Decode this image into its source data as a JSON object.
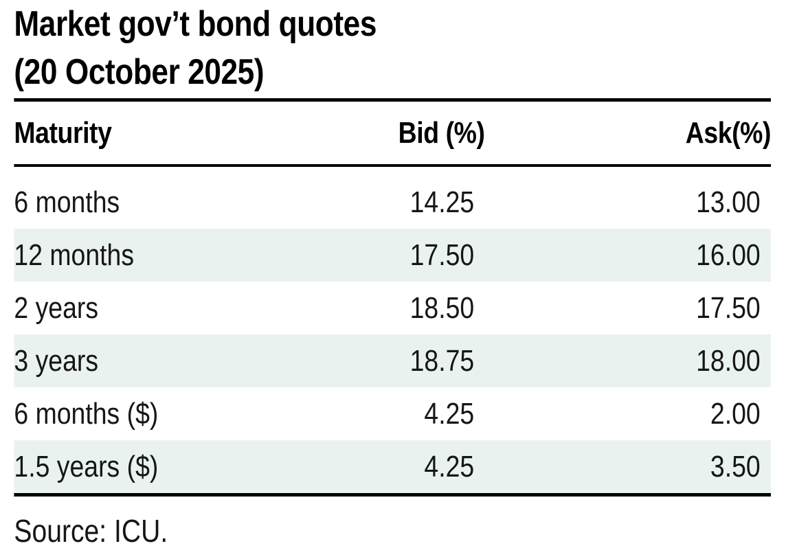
{
  "title": {
    "line1": "Market gov’t bond quotes",
    "line2": "(20 October 2025)"
  },
  "table": {
    "columns": [
      "Maturity",
      "Bid (%)",
      "Ask(%)"
    ],
    "rows": [
      {
        "maturity": "6 months",
        "bid": "14.25",
        "ask": "13.00"
      },
      {
        "maturity": "12 months",
        "bid": "17.50",
        "ask": "16.00"
      },
      {
        "maturity": "2 years",
        "bid": "18.50",
        "ask": "17.50"
      },
      {
        "maturity": "3 years",
        "bid": "18.75",
        "ask": "18.00"
      },
      {
        "maturity": "6 months ($)",
        "bid": "4.25",
        "ask": "2.00"
      },
      {
        "maturity": "1.5 years ($)",
        "bid": "4.25",
        "ask": "3.50"
      }
    ]
  },
  "source": "Source: ICU.",
  "colors": {
    "row_alt": "#eaf2f0",
    "rule": "#000000",
    "text": "#161616"
  },
  "chart_data": {
    "type": "table",
    "title": "Market gov’t bond quotes (20 October 2025)",
    "columns": [
      "Maturity",
      "Bid (%)",
      "Ask(%)"
    ],
    "rows": [
      [
        "6 months",
        14.25,
        13.0
      ],
      [
        "12 months",
        17.5,
        16.0
      ],
      [
        "2 years",
        18.5,
        17.5
      ],
      [
        "3 years",
        18.75,
        18.0
      ],
      [
        "6 months ($)",
        4.25,
        2.0
      ],
      [
        "1.5 years ($)",
        4.25,
        3.5
      ]
    ],
    "source": "Source: ICU."
  }
}
